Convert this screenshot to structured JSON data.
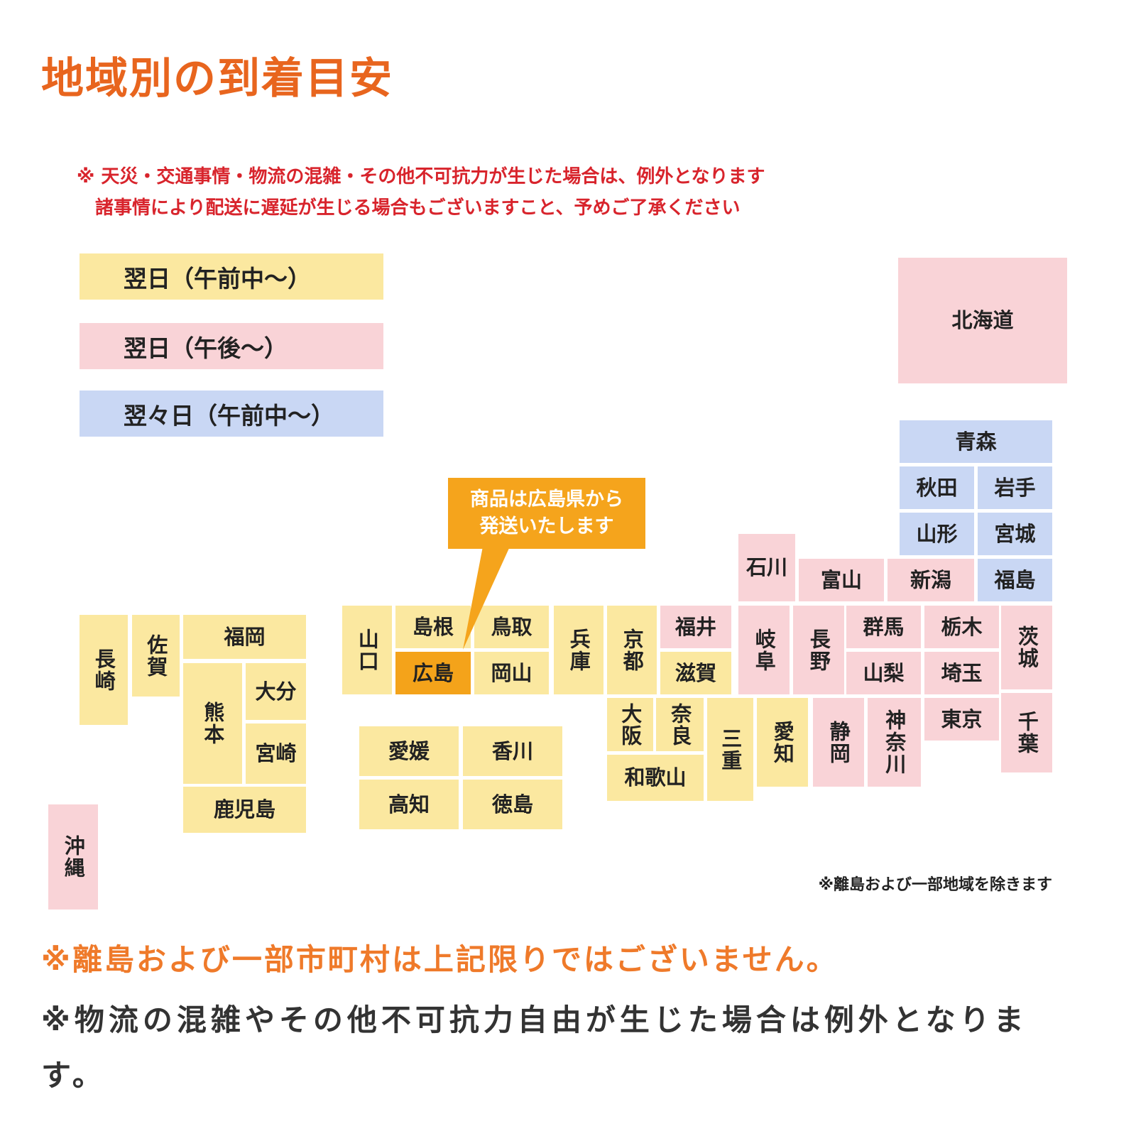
{
  "title": "地域別の到着目安",
  "warnings": [
    "※ 天災・交通事情・物流の混雑・その他不可抗力が生じた場合は、例外となります",
    "諸事情により配送に遅延が生じる場合もございますこと、予めご了承ください"
  ],
  "colors": {
    "next_morning": "#fbe8a0",
    "next_afternoon": "#f9d3d7",
    "day_after": "#c9d7f4",
    "origin": "#f4a31a",
    "title": "#e8651e",
    "warning": "#d8242c"
  },
  "legend": [
    {
      "key": "next_morning",
      "label": "翌日（午前中～）"
    },
    {
      "key": "next_afternoon",
      "label": "翌日（午後～）"
    },
    {
      "key": "day_after",
      "label": "翌々日（午前中～）"
    }
  ],
  "callout": "商品は広島県から\n発送いたします",
  "prefectures": [
    {
      "name": "北海道",
      "zone": "next_afternoon"
    },
    {
      "name": "青森",
      "zone": "day_after"
    },
    {
      "name": "秋田",
      "zone": "day_after"
    },
    {
      "name": "岩手",
      "zone": "day_after"
    },
    {
      "name": "山形",
      "zone": "day_after"
    },
    {
      "name": "宮城",
      "zone": "day_after"
    },
    {
      "name": "福島",
      "zone": "day_after"
    },
    {
      "name": "石川",
      "zone": "next_afternoon"
    },
    {
      "name": "富山",
      "zone": "next_afternoon"
    },
    {
      "name": "新潟",
      "zone": "next_afternoon"
    },
    {
      "name": "福井",
      "zone": "next_afternoon"
    },
    {
      "name": "滋賀",
      "zone": "next_morning"
    },
    {
      "name": "岐阜",
      "zone": "next_afternoon"
    },
    {
      "name": "長野",
      "zone": "next_afternoon"
    },
    {
      "name": "群馬",
      "zone": "next_afternoon"
    },
    {
      "name": "山梨",
      "zone": "next_afternoon"
    },
    {
      "name": "栃木",
      "zone": "next_afternoon"
    },
    {
      "name": "埼玉",
      "zone": "next_afternoon"
    },
    {
      "name": "茨城",
      "zone": "next_afternoon"
    },
    {
      "name": "東京",
      "zone": "next_afternoon"
    },
    {
      "name": "千葉",
      "zone": "next_afternoon"
    },
    {
      "name": "神奈川",
      "zone": "next_afternoon"
    },
    {
      "name": "静岡",
      "zone": "next_afternoon"
    },
    {
      "name": "愛知",
      "zone": "next_morning"
    },
    {
      "name": "三重",
      "zone": "next_morning"
    },
    {
      "name": "奈良",
      "zone": "next_morning"
    },
    {
      "name": "大阪",
      "zone": "next_morning"
    },
    {
      "name": "和歌山",
      "zone": "next_morning"
    },
    {
      "name": "京都",
      "zone": "next_morning"
    },
    {
      "name": "兵庫",
      "zone": "next_morning"
    },
    {
      "name": "鳥取",
      "zone": "next_morning"
    },
    {
      "name": "岡山",
      "zone": "next_morning"
    },
    {
      "name": "島根",
      "zone": "next_morning"
    },
    {
      "name": "広島",
      "zone": "origin"
    },
    {
      "name": "山口",
      "zone": "next_morning"
    },
    {
      "name": "愛媛",
      "zone": "next_morning"
    },
    {
      "name": "香川",
      "zone": "next_morning"
    },
    {
      "name": "高知",
      "zone": "next_morning"
    },
    {
      "name": "徳島",
      "zone": "next_morning"
    },
    {
      "name": "福岡",
      "zone": "next_morning"
    },
    {
      "name": "佐賀",
      "zone": "next_morning"
    },
    {
      "name": "長崎",
      "zone": "next_morning"
    },
    {
      "name": "熊本",
      "zone": "next_morning"
    },
    {
      "name": "大分",
      "zone": "next_morning"
    },
    {
      "name": "宮崎",
      "zone": "next_morning"
    },
    {
      "name": "鹿児島",
      "zone": "next_morning"
    },
    {
      "name": "沖縄",
      "zone": "next_afternoon"
    }
  ],
  "map_note": "※離島および一部地域を除きます",
  "footer_notes": [
    "※離島および一部市町村は上記限りではございません。",
    "※物流の混雑やその他不可抗力自由が生じた場合は例外となります。"
  ]
}
